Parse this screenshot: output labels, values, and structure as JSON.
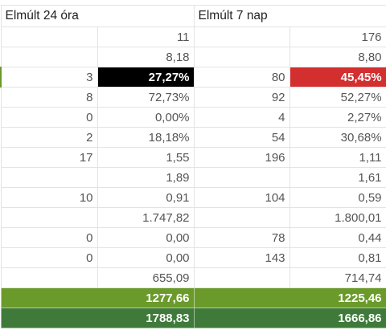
{
  "headers": {
    "left": "Elmúlt 24 óra",
    "right": "Elmúlt 7 nap"
  },
  "rows": [
    {
      "a": "",
      "b": "11",
      "c": "",
      "d": "176"
    },
    {
      "a": "",
      "b": "8,18",
      "c": "",
      "d": "8,80"
    },
    {
      "a": "3",
      "b": "27,27%",
      "c": "80",
      "d": "45,45%"
    },
    {
      "a": "8",
      "b": "72,73%",
      "c": "92",
      "d": "52,27%"
    },
    {
      "a": "0",
      "b": "0,00%",
      "c": "4",
      "d": "2,27%"
    },
    {
      "a": "2",
      "b": "18,18%",
      "c": "54",
      "d": "30,68%"
    },
    {
      "a": "17",
      "b": "1,55",
      "c": "196",
      "d": "1,11"
    },
    {
      "a": "",
      "b": "1,89",
      "c": "",
      "d": "1,61"
    },
    {
      "a": "10",
      "b": "0,91",
      "c": "104",
      "d": "0,59"
    },
    {
      "a": "",
      "b": "1.747,82",
      "c": "",
      "d": "1.800,01"
    },
    {
      "a": "0",
      "b": "0,00",
      "c": "78",
      "d": "0,44"
    },
    {
      "a": "0",
      "b": "0,00",
      "c": "143",
      "d": "0,81"
    },
    {
      "a": "",
      "b": "655,09",
      "c": "",
      "d": "714,74"
    }
  ],
  "totals": [
    {
      "left": "1277,66",
      "right": "1225,46"
    },
    {
      "left": "1788,83",
      "right": "1666,86"
    }
  ],
  "colors": {
    "highlight_black": "#000000",
    "highlight_red": "#d32f2f",
    "total_green_light": "#6a9a2a",
    "total_green_dark": "#3f7a3a"
  }
}
